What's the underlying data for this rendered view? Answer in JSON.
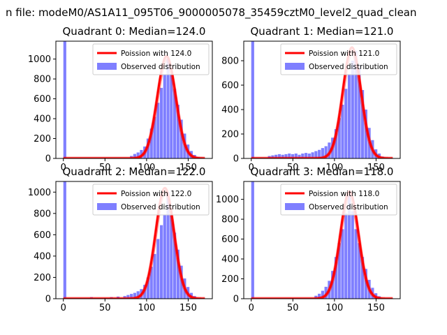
{
  "figure": {
    "suptitle": "n file: modeM0/AS1A11_095T06_9000005078_35459cztM0_level2_quad_clean"
  },
  "legend_labels": {
    "poisson_prefix": "Poission with",
    "observed": "Observed distribution"
  },
  "colors": {
    "hist": "#7f7fff",
    "poisson": "#ff0000",
    "axes": "#000000"
  },
  "chart_data": [
    {
      "type": "bar",
      "title": "Quadrant 0: Median=124.0",
      "median": 124.0,
      "poisson_label": "Poission with 124.0",
      "xlim": [
        -9,
        179
      ],
      "ylim": [
        0,
        1180
      ],
      "xticks": [
        0,
        50,
        100,
        150
      ],
      "yticks": [
        0,
        200,
        400,
        600,
        800,
        1000
      ],
      "bin_width": 3.5,
      "bars": [
        {
          "x": 0,
          "y": 1180
        },
        {
          "x": 80,
          "y": 25
        },
        {
          "x": 84,
          "y": 45
        },
        {
          "x": 88,
          "y": 60
        },
        {
          "x": 92,
          "y": 85
        },
        {
          "x": 96,
          "y": 120
        },
        {
          "x": 100,
          "y": 200
        },
        {
          "x": 104,
          "y": 300
        },
        {
          "x": 108,
          "y": 420
        },
        {
          "x": 112,
          "y": 560
        },
        {
          "x": 116,
          "y": 710
        },
        {
          "x": 120,
          "y": 845
        },
        {
          "x": 124,
          "y": 1000
        },
        {
          "x": 128,
          "y": 840
        },
        {
          "x": 132,
          "y": 700
        },
        {
          "x": 136,
          "y": 540
        },
        {
          "x": 140,
          "y": 390
        },
        {
          "x": 144,
          "y": 250
        },
        {
          "x": 148,
          "y": 140
        },
        {
          "x": 152,
          "y": 75
        },
        {
          "x": 156,
          "y": 35
        },
        {
          "x": 160,
          "y": 15
        }
      ],
      "poisson": {
        "peak": 1030,
        "sigma": 11.1,
        "x_range": [
          0,
          170
        ]
      },
      "poisson_shadow": {
        "peak": 1000,
        "sigma": 11.1
      }
    },
    {
      "type": "bar",
      "title": "Quadrant 1: Median=121.0",
      "median": 121.0,
      "poisson_label": "Poission with 121.0",
      "xlim": [
        -9,
        179
      ],
      "ylim": [
        0,
        960
      ],
      "xticks": [
        0,
        50,
        100,
        150
      ],
      "yticks": [
        0,
        200,
        400,
        600,
        800
      ],
      "bin_width": 3.5,
      "bars": [
        {
          "x": 0,
          "y": 960
        },
        {
          "x": 20,
          "y": 20
        },
        {
          "x": 24,
          "y": 25
        },
        {
          "x": 28,
          "y": 30
        },
        {
          "x": 32,
          "y": 35
        },
        {
          "x": 36,
          "y": 30
        },
        {
          "x": 40,
          "y": 35
        },
        {
          "x": 44,
          "y": 40
        },
        {
          "x": 48,
          "y": 35
        },
        {
          "x": 52,
          "y": 40
        },
        {
          "x": 56,
          "y": 30
        },
        {
          "x": 60,
          "y": 40
        },
        {
          "x": 64,
          "y": 45
        },
        {
          "x": 68,
          "y": 40
        },
        {
          "x": 72,
          "y": 50
        },
        {
          "x": 76,
          "y": 60
        },
        {
          "x": 80,
          "y": 70
        },
        {
          "x": 84,
          "y": 85
        },
        {
          "x": 88,
          "y": 100
        },
        {
          "x": 92,
          "y": 130
        },
        {
          "x": 96,
          "y": 170
        },
        {
          "x": 100,
          "y": 240
        },
        {
          "x": 104,
          "y": 330
        },
        {
          "x": 108,
          "y": 440
        },
        {
          "x": 112,
          "y": 570
        },
        {
          "x": 116,
          "y": 690
        },
        {
          "x": 120,
          "y": 800
        },
        {
          "x": 124,
          "y": 880
        },
        {
          "x": 128,
          "y": 760
        },
        {
          "x": 132,
          "y": 560
        },
        {
          "x": 136,
          "y": 400
        },
        {
          "x": 140,
          "y": 250
        },
        {
          "x": 144,
          "y": 150
        },
        {
          "x": 148,
          "y": 75
        },
        {
          "x": 152,
          "y": 40
        },
        {
          "x": 156,
          "y": 15
        }
      ],
      "poisson": {
        "peak": 910,
        "sigma": 11.0,
        "x_range": [
          0,
          170
        ]
      },
      "poisson_shadow": {
        "peak": 880,
        "sigma": 11.0
      }
    },
    {
      "type": "bar",
      "title": "Quadrant 2: Median=122.0",
      "median": 122.0,
      "poisson_label": "Poission with 122.0",
      "xlim": [
        -9,
        179
      ],
      "ylim": [
        0,
        1100
      ],
      "xticks": [
        0,
        50,
        100,
        150
      ],
      "yticks": [
        0,
        200,
        400,
        600,
        800,
        1000
      ],
      "bin_width": 3.5,
      "bars": [
        {
          "x": 0,
          "y": 1100
        },
        {
          "x": 32,
          "y": 15
        },
        {
          "x": 56,
          "y": 15
        },
        {
          "x": 64,
          "y": 20
        },
        {
          "x": 72,
          "y": 25
        },
        {
          "x": 76,
          "y": 35
        },
        {
          "x": 80,
          "y": 45
        },
        {
          "x": 84,
          "y": 55
        },
        {
          "x": 88,
          "y": 70
        },
        {
          "x": 92,
          "y": 90
        },
        {
          "x": 96,
          "y": 130
        },
        {
          "x": 100,
          "y": 200
        },
        {
          "x": 104,
          "y": 300
        },
        {
          "x": 108,
          "y": 420
        },
        {
          "x": 112,
          "y": 560
        },
        {
          "x": 116,
          "y": 690
        },
        {
          "x": 120,
          "y": 790
        },
        {
          "x": 124,
          "y": 1000
        },
        {
          "x": 128,
          "y": 780
        },
        {
          "x": 132,
          "y": 620
        },
        {
          "x": 136,
          "y": 460
        },
        {
          "x": 140,
          "y": 310
        },
        {
          "x": 144,
          "y": 190
        },
        {
          "x": 148,
          "y": 110
        },
        {
          "x": 152,
          "y": 55
        },
        {
          "x": 156,
          "y": 25
        }
      ],
      "poisson": {
        "peak": 1040,
        "sigma": 11.0,
        "x_range": [
          0,
          170
        ]
      },
      "poisson_shadow": {
        "peak": 1010,
        "sigma": 11.0
      }
    },
    {
      "type": "bar",
      "title": "Quadrant 3: Median=118.0",
      "median": 118.0,
      "poisson_label": "Poission with 118.0",
      "xlim": [
        -9,
        179
      ],
      "ylim": [
        0,
        1180
      ],
      "xticks": [
        0,
        50,
        100,
        150
      ],
      "yticks": [
        0,
        200,
        400,
        600,
        800,
        1000
      ],
      "bin_width": 3.5,
      "bars": [
        {
          "x": 0,
          "y": 1180
        },
        {
          "x": 76,
          "y": 30
        },
        {
          "x": 80,
          "y": 50
        },
        {
          "x": 84,
          "y": 80
        },
        {
          "x": 88,
          "y": 120
        },
        {
          "x": 92,
          "y": 180
        },
        {
          "x": 96,
          "y": 280
        },
        {
          "x": 100,
          "y": 420
        },
        {
          "x": 104,
          "y": 560
        },
        {
          "x": 108,
          "y": 700
        },
        {
          "x": 112,
          "y": 860
        },
        {
          "x": 116,
          "y": 1040
        },
        {
          "x": 120,
          "y": 880
        },
        {
          "x": 124,
          "y": 700
        },
        {
          "x": 128,
          "y": 560
        },
        {
          "x": 132,
          "y": 420
        },
        {
          "x": 136,
          "y": 300
        },
        {
          "x": 140,
          "y": 190
        },
        {
          "x": 144,
          "y": 110
        },
        {
          "x": 148,
          "y": 55
        },
        {
          "x": 152,
          "y": 25
        }
      ],
      "poisson": {
        "peak": 1080,
        "sigma": 10.9,
        "x_range": [
          0,
          170
        ]
      },
      "poisson_shadow": {
        "peak": 1050,
        "sigma": 10.9
      }
    }
  ]
}
